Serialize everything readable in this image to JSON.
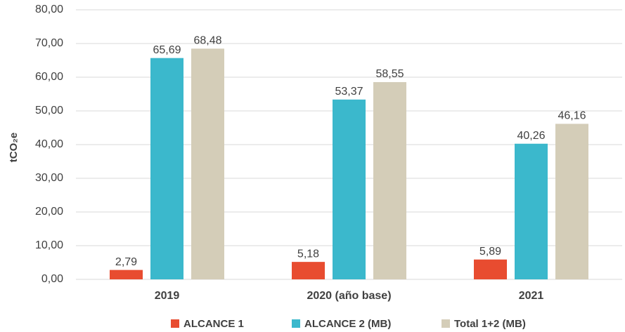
{
  "chart_data": {
    "type": "bar",
    "y_label": "tCO₂e",
    "categories": [
      "2019",
      "2020 (año base)",
      "2021"
    ],
    "series": [
      {
        "name": "ALCANCE 1",
        "color": "#e84c30",
        "values": [
          2.79,
          5.18,
          5.89
        ],
        "value_labels": [
          "2,79",
          "5,18",
          "5,89"
        ]
      },
      {
        "name": "ALCANCE 2 (MB)",
        "color": "#3bb8cc",
        "values": [
          65.69,
          53.37,
          40.26
        ],
        "value_labels": [
          "65,69",
          "53,37",
          "40,26"
        ]
      },
      {
        "name": "Total 1+2 (MB)",
        "color": "#d4cdb8",
        "values": [
          68.48,
          58.55,
          46.16
        ],
        "value_labels": [
          "68,48",
          "58,55",
          "46,16"
        ]
      }
    ],
    "ylim": [
      0,
      80
    ],
    "yticks": [
      {
        "value": 0,
        "label": "0,00"
      },
      {
        "value": 10,
        "label": "10,00"
      },
      {
        "value": 20,
        "label": "20,00"
      },
      {
        "value": 30,
        "label": "30,00"
      },
      {
        "value": 40,
        "label": "40,00"
      },
      {
        "value": 50,
        "label": "50,00"
      },
      {
        "value": 60,
        "label": "60,00"
      },
      {
        "value": 70,
        "label": "70,00"
      },
      {
        "value": 80,
        "label": "80,00"
      }
    ],
    "grid": true,
    "legend": "bottom"
  }
}
